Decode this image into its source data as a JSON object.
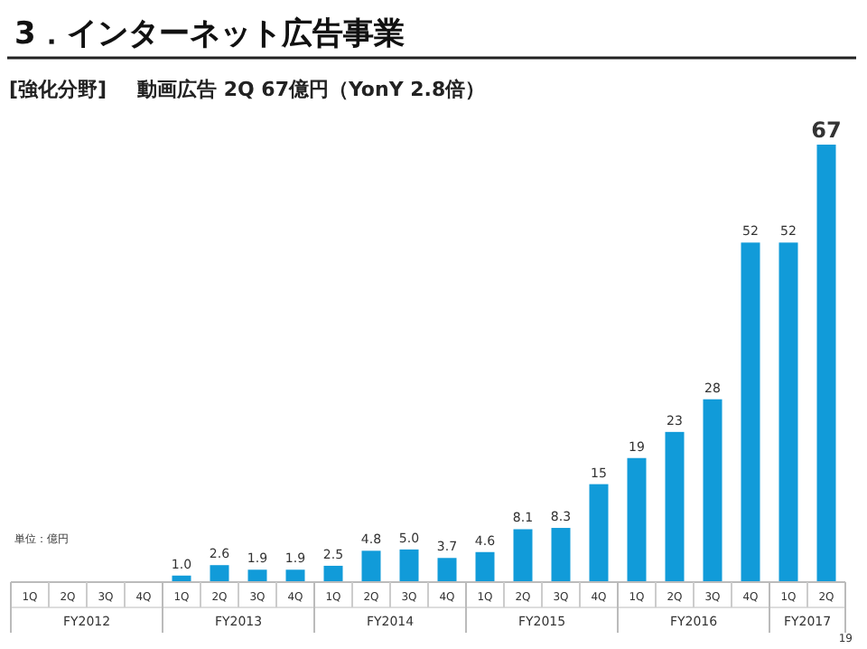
{
  "chart_data": {
    "type": "bar",
    "title": "3．インターネット広告事業",
    "categories": [
      "1Q",
      "2Q",
      "3Q",
      "4Q",
      "1Q",
      "2Q",
      "3Q",
      "4Q",
      "1Q",
      "2Q",
      "3Q",
      "4Q",
      "1Q",
      "2Q",
      "3Q",
      "4Q",
      "1Q",
      "2Q",
      "3Q",
      "4Q",
      "1Q",
      "2Q"
    ],
    "values": [
      null,
      null,
      null,
      null,
      1.0,
      2.6,
      1.9,
      1.9,
      2.5,
      4.8,
      5.0,
      3.7,
      4.6,
      8.1,
      8.3,
      15,
      19,
      23,
      28,
      52,
      52,
      67
    ],
    "value_labels": [
      null,
      null,
      null,
      null,
      "1.0",
      "2.6",
      "1.9",
      "1.9",
      "2.5",
      "4.8",
      "5.0",
      "3.7",
      "4.6",
      "8.1",
      "8.3",
      "15",
      "19",
      "23",
      "28",
      "52",
      "52",
      "67"
    ],
    "color": "#119bd9",
    "annotations": [
      "[強化分野]",
      "動画広告 2Q 67億円（YonY 2.8倍）",
      "単位：億円",
      "FY2012",
      "FY2013",
      "FY2014",
      "FY2015",
      "FY2016",
      "FY2017",
      "19"
    ]
  }
}
